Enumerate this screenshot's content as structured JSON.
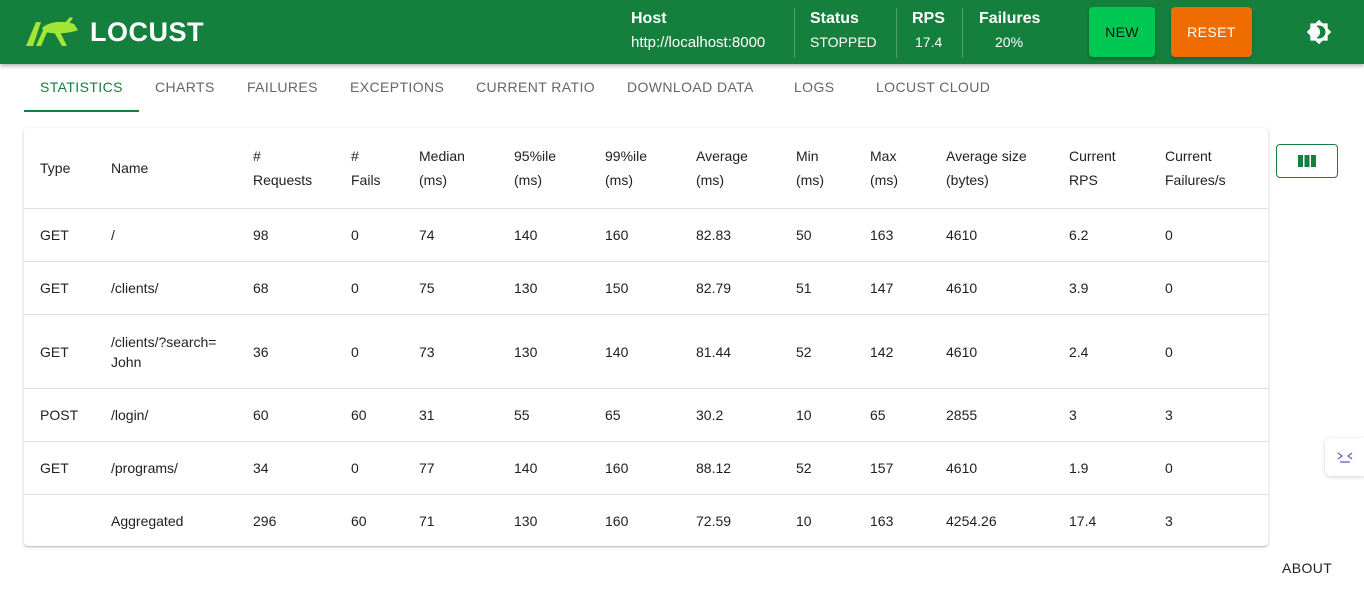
{
  "header": {
    "logo_text": "LOCUST",
    "host": {
      "label": "Host",
      "value": "http://localhost:8000"
    },
    "status": {
      "label": "Status",
      "value": "STOPPED"
    },
    "rps": {
      "label": "RPS",
      "value": "17.4"
    },
    "failures": {
      "label": "Failures",
      "value": "20%"
    },
    "new_button": "NEW",
    "reset_button": "RESET",
    "theme_icon": "brightness-icon",
    "colors": {
      "appbar": "#15803d",
      "new": "#00c853",
      "reset": "#ef6c00"
    }
  },
  "tabs": [
    {
      "label": "STATISTICS",
      "active": true
    },
    {
      "label": "CHARTS"
    },
    {
      "label": "FAILURES"
    },
    {
      "label": "EXCEPTIONS"
    },
    {
      "label": "CURRENT RATIO"
    },
    {
      "label": "DOWNLOAD DATA"
    },
    {
      "label": "LOGS"
    },
    {
      "label": "LOCUST CLOUD"
    }
  ],
  "table": {
    "columns": [
      {
        "line1": "Type",
        "line2": ""
      },
      {
        "line1": "Name",
        "line2": ""
      },
      {
        "line1": "#",
        "line2": "Requests"
      },
      {
        "line1": "#",
        "line2": "Fails"
      },
      {
        "line1": "Median",
        "line2": "(ms)"
      },
      {
        "line1": "95%ile",
        "line2": "(ms)"
      },
      {
        "line1": "99%ile",
        "line2": "(ms)"
      },
      {
        "line1": "Average",
        "line2": "(ms)"
      },
      {
        "line1": "Min",
        "line2": "(ms)"
      },
      {
        "line1": "Max",
        "line2": "(ms)"
      },
      {
        "line1": "Average size",
        "line2": "(bytes)"
      },
      {
        "line1": "Current",
        "line2": "RPS"
      },
      {
        "line1": "Current",
        "line2": "Failures/s"
      }
    ],
    "rows": [
      {
        "cells": [
          "GET",
          "/",
          "98",
          "0",
          "74",
          "140",
          "160",
          "82.83",
          "50",
          "163",
          "4610",
          "6.2",
          "0"
        ]
      },
      {
        "cells": [
          "GET",
          "/clients/",
          "68",
          "0",
          "75",
          "130",
          "150",
          "82.79",
          "51",
          "147",
          "4610",
          "3.9",
          "0"
        ]
      },
      {
        "cells": [
          "GET",
          "/clients/?search=John",
          "36",
          "0",
          "73",
          "130",
          "140",
          "81.44",
          "52",
          "142",
          "4610",
          "2.4",
          "0"
        ]
      },
      {
        "cells": [
          "POST",
          "/login/",
          "60",
          "60",
          "31",
          "55",
          "65",
          "30.2",
          "10",
          "65",
          "2855",
          "3",
          "3"
        ]
      },
      {
        "cells": [
          "GET",
          "/programs/",
          "34",
          "0",
          "77",
          "140",
          "160",
          "88.12",
          "52",
          "157",
          "4610",
          "1.9",
          "0"
        ]
      },
      {
        "cells": [
          "",
          "Aggregated",
          "296",
          "60",
          "71",
          "130",
          "160",
          "72.59",
          "10",
          "163",
          "4254.26",
          "17.4",
          "3"
        ]
      }
    ]
  },
  "columns_button_icon": "view-column-icon",
  "side_handle_icon": "code-toggle-icon",
  "about_link": "ABOUT"
}
